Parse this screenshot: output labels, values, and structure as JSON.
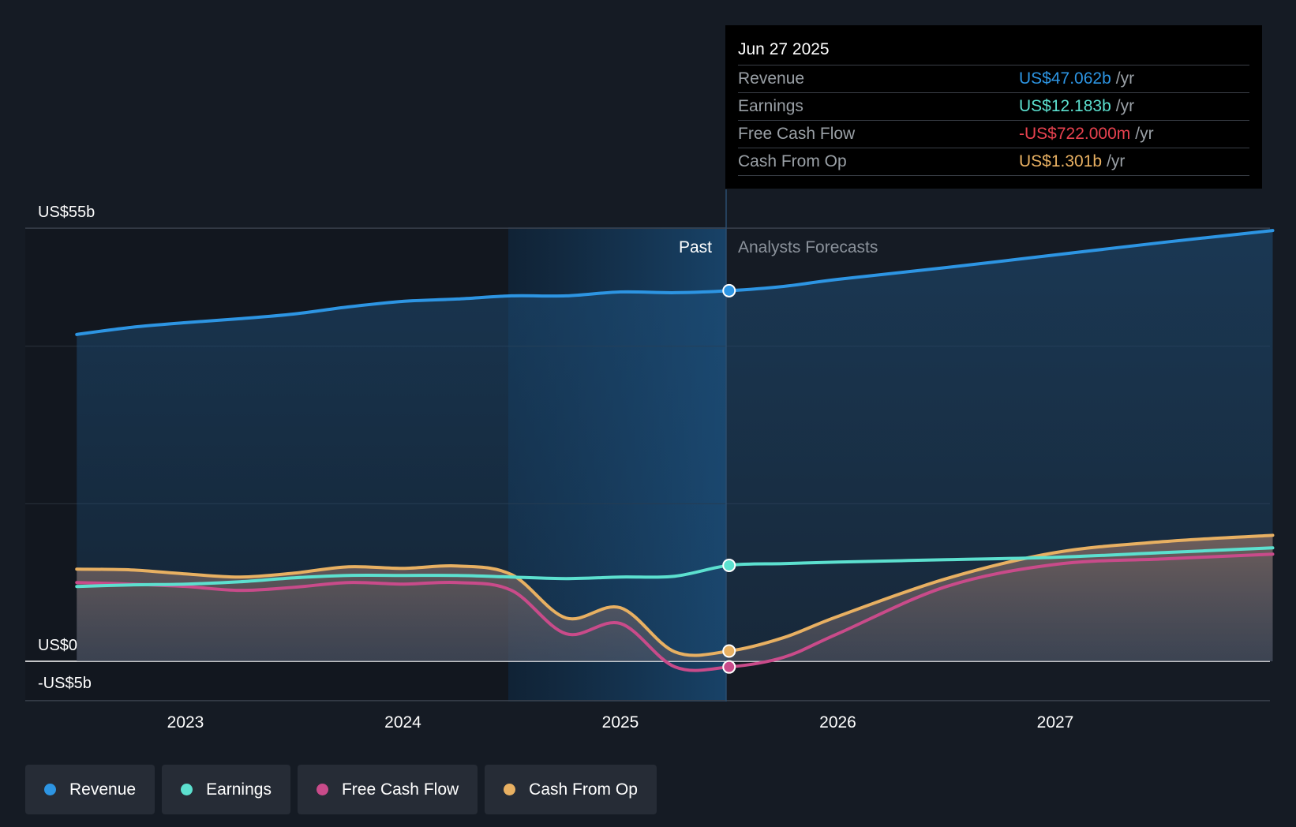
{
  "chart_data": {
    "type": "line",
    "title": "",
    "y_axis": {
      "ylim": [
        -5,
        55
      ],
      "tick_labels": [
        "US$55b",
        "US$0",
        "-US$5b"
      ]
    },
    "x_axis": {
      "tick_labels": [
        "2023",
        "2024",
        "2025",
        "2026",
        "2027"
      ]
    },
    "divider": {
      "past_label": "Past",
      "forecast_label": "Analysts Forecasts",
      "date": 2025.5
    },
    "series": [
      {
        "name": "Revenue",
        "color": "#2d95e3",
        "points": [
          [
            2022.5,
            41.5
          ],
          [
            2022.75,
            42.4
          ],
          [
            2023.0,
            43.0
          ],
          [
            2023.25,
            43.5
          ],
          [
            2023.5,
            44.1
          ],
          [
            2023.75,
            45.0
          ],
          [
            2024.0,
            45.7
          ],
          [
            2024.25,
            46.0
          ],
          [
            2024.5,
            46.4
          ],
          [
            2024.75,
            46.4
          ],
          [
            2025.0,
            46.9
          ],
          [
            2025.25,
            46.8
          ],
          [
            2025.5,
            47.06
          ],
          [
            2025.75,
            47.6
          ],
          [
            2026.0,
            48.5
          ],
          [
            2026.5,
            50.0
          ],
          [
            2027.0,
            51.6
          ],
          [
            2027.5,
            53.2
          ],
          [
            2028.0,
            54.7
          ]
        ]
      },
      {
        "name": "Earnings",
        "color": "#5ce0cf",
        "points": [
          [
            2022.5,
            9.5
          ],
          [
            2022.75,
            9.7
          ],
          [
            2023.0,
            9.8
          ],
          [
            2023.25,
            10.1
          ],
          [
            2023.5,
            10.6
          ],
          [
            2023.75,
            10.9
          ],
          [
            2024.0,
            10.9
          ],
          [
            2024.25,
            10.9
          ],
          [
            2024.5,
            10.7
          ],
          [
            2024.75,
            10.5
          ],
          [
            2025.0,
            10.7
          ],
          [
            2025.25,
            10.8
          ],
          [
            2025.5,
            12.18
          ],
          [
            2025.75,
            12.4
          ],
          [
            2026.0,
            12.6
          ],
          [
            2026.5,
            12.9
          ],
          [
            2027.0,
            13.2
          ],
          [
            2027.5,
            13.8
          ],
          [
            2028.0,
            14.4
          ]
        ]
      },
      {
        "name": "Free Cash Flow",
        "color": "#c94b8a",
        "points": [
          [
            2022.5,
            10.0
          ],
          [
            2022.75,
            9.8
          ],
          [
            2023.0,
            9.5
          ],
          [
            2023.25,
            9.0
          ],
          [
            2023.5,
            9.4
          ],
          [
            2023.75,
            10.0
          ],
          [
            2024.0,
            9.8
          ],
          [
            2024.25,
            10.0
          ],
          [
            2024.5,
            9.0
          ],
          [
            2024.75,
            3.5
          ],
          [
            2025.0,
            4.8
          ],
          [
            2025.25,
            -0.7
          ],
          [
            2025.5,
            -0.72
          ],
          [
            2025.75,
            0.5
          ],
          [
            2026.0,
            3.5
          ],
          [
            2026.5,
            9.5
          ],
          [
            2027.0,
            12.3
          ],
          [
            2027.5,
            13.0
          ],
          [
            2028.0,
            13.6
          ]
        ]
      },
      {
        "name": "Cash From Op",
        "color": "#e8b062",
        "points": [
          [
            2022.5,
            11.7
          ],
          [
            2022.75,
            11.6
          ],
          [
            2023.0,
            11.1
          ],
          [
            2023.25,
            10.7
          ],
          [
            2023.5,
            11.2
          ],
          [
            2023.75,
            12.0
          ],
          [
            2024.0,
            11.8
          ],
          [
            2024.25,
            12.1
          ],
          [
            2024.5,
            11.0
          ],
          [
            2024.75,
            5.5
          ],
          [
            2025.0,
            6.8
          ],
          [
            2025.25,
            1.2
          ],
          [
            2025.5,
            1.3
          ],
          [
            2025.75,
            3.0
          ],
          [
            2026.0,
            5.7
          ],
          [
            2026.5,
            10.5
          ],
          [
            2027.0,
            13.8
          ],
          [
            2027.5,
            15.2
          ],
          [
            2028.0,
            16.0
          ]
        ]
      }
    ]
  },
  "tooltip": {
    "date": "Jun 27 2025",
    "rows": [
      {
        "label": "Revenue",
        "value": "US$47.062b",
        "unit": "/yr",
        "color": "#2d95e3"
      },
      {
        "label": "Earnings",
        "value": "US$12.183b",
        "unit": "/yr",
        "color": "#5ce0cf"
      },
      {
        "label": "Free Cash Flow",
        "value": "-US$722.000m",
        "unit": "/yr",
        "color": "#e8424f"
      },
      {
        "label": "Cash From Op",
        "value": "US$1.301b",
        "unit": "/yr",
        "color": "#e8b062"
      }
    ]
  },
  "legend": [
    {
      "label": "Revenue",
      "color": "#2d95e3"
    },
    {
      "label": "Earnings",
      "color": "#5ce0cf"
    },
    {
      "label": "Free Cash Flow",
      "color": "#c94b8a"
    },
    {
      "label": "Cash From Op",
      "color": "#e8b062"
    }
  ]
}
